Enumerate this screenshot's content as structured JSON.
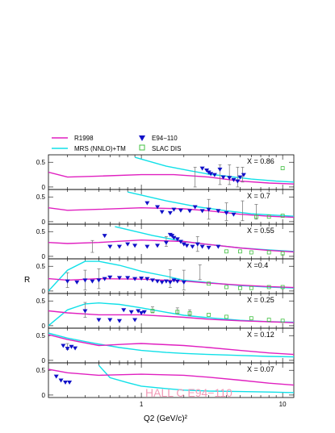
{
  "chart_data": {
    "type": "scatter",
    "xlabel": "Q2 (GeV/c)²",
    "ylabel": "R",
    "xscale": "log",
    "xlim": [
      0.22,
      12
    ],
    "ylim": [
      -0.05,
      0.65
    ],
    "x_ticks": [
      {
        "value": 1,
        "label": "1"
      },
      {
        "value": 10,
        "label": "10"
      }
    ],
    "y_ticks": [
      {
        "value": 0,
        "label": "0"
      },
      {
        "value": 0.5,
        "label": "0.5"
      }
    ],
    "legend": {
      "placement": "top",
      "items": [
        {
          "key": "r1998",
          "label": "R1998",
          "symbol": "line",
          "color": "#e020c0"
        },
        {
          "key": "mrs",
          "label": "MRS (NNLO)+TM",
          "symbol": "line",
          "color": "#10e0e8"
        },
        {
          "key": "e94",
          "label": "E94−110",
          "symbol": "triangle-down",
          "color": "#1010c8"
        },
        {
          "key": "slac",
          "label": "SLAC DIS",
          "symbol": "open-square",
          "color": "#40c040"
        }
      ]
    },
    "watermark": "HALL C  E94−110",
    "colors": {
      "r1998": "#e020c0",
      "mrs": "#10e0e8",
      "e94": "#1010c8",
      "slac": "#40c040",
      "errorbar": "#808080"
    },
    "panels": [
      {
        "label": "X = 0.86",
        "r1998": [
          [
            0.22,
            0.3
          ],
          [
            0.3,
            0.2
          ],
          [
            0.5,
            0.22
          ],
          [
            1,
            0.25
          ],
          [
            1.7,
            0.25
          ],
          [
            3,
            0.2
          ],
          [
            5,
            0.12
          ],
          [
            8,
            0.08
          ],
          [
            12,
            0.06
          ]
        ],
        "mrs": [
          [
            0.9,
            0.6
          ],
          [
            1.5,
            0.42
          ],
          [
            2.2,
            0.33
          ],
          [
            3,
            0.26
          ],
          [
            4,
            0.22
          ],
          [
            6,
            0.16
          ],
          [
            9,
            0.12
          ],
          [
            12,
            0.1
          ]
        ],
        "e94": [
          [
            2.7,
            0.38
          ],
          [
            2.9,
            0.34
          ],
          [
            3,
            0.3
          ],
          [
            3.1,
            0.27
          ],
          [
            3.3,
            0.25
          ],
          [
            3.6,
            0.36
          ],
          [
            3.8,
            0.2
          ],
          [
            4.2,
            0.19
          ],
          [
            4.5,
            0.15
          ],
          [
            4.8,
            0.12
          ],
          [
            5,
            0.2
          ],
          [
            5.3,
            0.25
          ]
        ],
        "errorbars": [
          [
            2.4,
            0.2,
            0.2
          ],
          [
            3.6,
            0.25,
            0.2
          ],
          [
            4.2,
            0.25,
            0.2
          ],
          [
            4.8,
            0.2,
            0.2
          ],
          [
            5.2,
            0.25,
            0.15
          ]
        ],
        "slac": [
          [
            10,
            0.38
          ]
        ]
      },
      {
        "label": "X = 0.7",
        "r1998": [
          [
            0.22,
            0.28
          ],
          [
            0.3,
            0.23
          ],
          [
            0.5,
            0.25
          ],
          [
            1,
            0.28
          ],
          [
            2,
            0.26
          ],
          [
            3,
            0.22
          ],
          [
            5,
            0.15
          ],
          [
            8,
            0.11
          ],
          [
            12,
            0.09
          ]
        ],
        "mrs": [
          [
            0.8,
            0.6
          ],
          [
            1.5,
            0.42
          ],
          [
            2.5,
            0.3
          ],
          [
            4,
            0.22
          ],
          [
            6,
            0.16
          ],
          [
            9,
            0.13
          ],
          [
            12,
            0.11
          ]
        ],
        "e94": [
          [
            1.1,
            0.38
          ],
          [
            1.3,
            0.3
          ],
          [
            1.4,
            0.2
          ],
          [
            1.6,
            0.18
          ],
          [
            1.7,
            0.25
          ],
          [
            1.9,
            0.23
          ],
          [
            2.2,
            0.22
          ],
          [
            2.4,
            0.3
          ],
          [
            2.7,
            0.22
          ],
          [
            3,
            0.25
          ],
          [
            3.5,
            0.22
          ],
          [
            4,
            0.18
          ],
          [
            4.5,
            0.15
          ]
        ],
        "errorbars": [
          [
            3,
            0.25,
            0.2
          ],
          [
            4,
            0.2,
            0.18
          ],
          [
            5.2,
            0.22,
            0.2
          ],
          [
            6.5,
            0.2,
            0.15
          ]
        ],
        "slac": [
          [
            6.5,
            0.1
          ],
          [
            8,
            0.1
          ],
          [
            10,
            0.12
          ]
        ]
      },
      {
        "label": "X = 0.55",
        "r1998": [
          [
            0.22,
            0.28
          ],
          [
            0.3,
            0.26
          ],
          [
            0.5,
            0.28
          ],
          [
            1,
            0.33
          ],
          [
            2,
            0.3
          ],
          [
            3,
            0.24
          ],
          [
            5,
            0.17
          ],
          [
            8,
            0.12
          ],
          [
            12,
            0.09
          ]
        ],
        "mrs": [
          [
            0.65,
            0.6
          ],
          [
            1.2,
            0.42
          ],
          [
            2,
            0.3
          ],
          [
            3,
            0.24
          ],
          [
            5,
            0.17
          ],
          [
            8,
            0.13
          ],
          [
            12,
            0.1
          ]
        ],
        "e94": [
          [
            0.55,
            0.42
          ],
          [
            0.6,
            0.2
          ],
          [
            0.7,
            0.2
          ],
          [
            0.8,
            0.25
          ],
          [
            0.9,
            0.22
          ],
          [
            1.1,
            0.2
          ],
          [
            1.3,
            0.22
          ],
          [
            1.5,
            0.28
          ],
          [
            1.6,
            0.44
          ],
          [
            1.65,
            0.42
          ],
          [
            1.7,
            0.38
          ],
          [
            1.8,
            0.35
          ],
          [
            1.9,
            0.3
          ],
          [
            2,
            0.25
          ],
          [
            2.1,
            0.22
          ],
          [
            2.3,
            0.2
          ],
          [
            2.5,
            0.25
          ],
          [
            2.7,
            0.2
          ],
          [
            3,
            0.18
          ],
          [
            3.5,
            0.2
          ]
        ],
        "errorbars": [
          [
            0.45,
            0.2,
            0.12
          ],
          [
            1.5,
            0.3,
            0.1
          ],
          [
            2.5,
            0.25,
            0.15
          ]
        ],
        "slac": [
          [
            4,
            0.1
          ],
          [
            5,
            0.1
          ],
          [
            6,
            0.08
          ],
          [
            8,
            0.08
          ],
          [
            10,
            0.06
          ]
        ]
      },
      {
        "label": "X =0.4",
        "r1998": [
          [
            0.22,
            0.25
          ],
          [
            0.3,
            0.22
          ],
          [
            0.5,
            0.25
          ],
          [
            1,
            0.24
          ],
          [
            2,
            0.2
          ],
          [
            3,
            0.16
          ],
          [
            5,
            0.12
          ],
          [
            8,
            0.09
          ],
          [
            12,
            0.07
          ]
        ],
        "mrs": [
          [
            0.22,
            0.0
          ],
          [
            0.3,
            0.42
          ],
          [
            0.4,
            0.6
          ],
          [
            0.5,
            0.6
          ],
          [
            0.7,
            0.52
          ],
          [
            1,
            0.4
          ],
          [
            1.5,
            0.3
          ],
          [
            2,
            0.22
          ],
          [
            3,
            0.17
          ],
          [
            5,
            0.11
          ],
          [
            8,
            0.08
          ],
          [
            12,
            0.06
          ]
        ],
        "e94": [
          [
            0.3,
            0.2
          ],
          [
            0.35,
            0.18
          ],
          [
            0.4,
            0.22
          ],
          [
            0.45,
            0.2
          ],
          [
            0.5,
            0.22
          ],
          [
            0.55,
            0.25
          ],
          [
            0.6,
            0.28
          ],
          [
            0.7,
            0.27
          ],
          [
            0.8,
            0.27
          ],
          [
            0.9,
            0.25
          ],
          [
            1,
            0.26
          ],
          [
            1.1,
            0.25
          ],
          [
            1.2,
            0.22
          ],
          [
            1.3,
            0.2
          ],
          [
            1.4,
            0.18
          ],
          [
            1.5,
            0.2
          ],
          [
            1.6,
            0.18
          ],
          [
            1.7,
            0.22
          ],
          [
            1.8,
            0.2
          ],
          [
            2,
            0.18
          ]
        ],
        "errorbars": [
          [
            0.3,
            0.22,
            0.15
          ],
          [
            0.4,
            0.22,
            0.2
          ],
          [
            0.5,
            0.25,
            0.2
          ],
          [
            1.6,
            0.25,
            0.18
          ],
          [
            2,
            0.22,
            0.2
          ],
          [
            2.6,
            0.38,
            0.15
          ]
        ],
        "slac": [
          [
            3,
            0.15
          ],
          [
            4,
            0.08
          ],
          [
            5,
            0.06
          ],
          [
            6,
            0.06
          ],
          [
            8,
            0.08
          ],
          [
            10,
            0.08
          ]
        ]
      },
      {
        "label": "X = 0.25",
        "r1998": [
          [
            0.22,
            0.3
          ],
          [
            0.3,
            0.26
          ],
          [
            0.5,
            0.22
          ],
          [
            0.8,
            0.22
          ],
          [
            1,
            0.22
          ],
          [
            2,
            0.17
          ],
          [
            3,
            0.13
          ],
          [
            5,
            0.1
          ],
          [
            8,
            0.08
          ],
          [
            12,
            0.06
          ]
        ],
        "mrs": [
          [
            0.22,
            0.0
          ],
          [
            0.3,
            0.32
          ],
          [
            0.4,
            0.44
          ],
          [
            0.5,
            0.46
          ],
          [
            0.7,
            0.43
          ],
          [
            1,
            0.36
          ],
          [
            1.5,
            0.27
          ],
          [
            2,
            0.21
          ],
          [
            3,
            0.16
          ],
          [
            5,
            0.11
          ],
          [
            8,
            0.08
          ],
          [
            12,
            0.07
          ]
        ],
        "e94": [
          [
            0.4,
            0.3
          ],
          [
            0.5,
            0.12
          ],
          [
            0.6,
            0.12
          ],
          [
            0.7,
            0.1
          ],
          [
            0.75,
            0.32
          ],
          [
            0.85,
            0.28
          ],
          [
            0.9,
            0.12
          ],
          [
            0.95,
            0.3
          ],
          [
            1,
            0.26
          ],
          [
            1.05,
            0.28
          ]
        ],
        "errorbars": [
          [
            0.4,
            0.32,
            0.15
          ],
          [
            1.2,
            0.32,
            0.06
          ],
          [
            1.8,
            0.3,
            0.06
          ],
          [
            2.2,
            0.26,
            0.06
          ]
        ],
        "slac": [
          [
            1.2,
            0.3
          ],
          [
            1.8,
            0.28
          ],
          [
            2.2,
            0.25
          ],
          [
            3,
            0.22
          ],
          [
            4,
            0.18
          ],
          [
            6,
            0.15
          ],
          [
            8,
            0.12
          ],
          [
            10,
            0.1
          ]
        ]
      },
      {
        "label": "X = 0.12",
        "r1998": [
          [
            0.22,
            0.52
          ],
          [
            0.3,
            0.42
          ],
          [
            0.5,
            0.3
          ],
          [
            0.8,
            0.33
          ],
          [
            1,
            0.34
          ],
          [
            2,
            0.3
          ],
          [
            3,
            0.26
          ],
          [
            5,
            0.2
          ],
          [
            8,
            0.15
          ],
          [
            12,
            0.12
          ]
        ],
        "mrs": [
          [
            0.22,
            0.55
          ],
          [
            0.3,
            0.45
          ],
          [
            0.4,
            0.38
          ],
          [
            0.5,
            0.33
          ],
          [
            0.7,
            0.26
          ],
          [
            1,
            0.2
          ],
          [
            1.5,
            0.16
          ],
          [
            2,
            0.14
          ],
          [
            3,
            0.12
          ],
          [
            5,
            0.1
          ],
          [
            8,
            0.08
          ],
          [
            12,
            0.07
          ]
        ],
        "e94": [
          [
            0.28,
            0.3
          ],
          [
            0.3,
            0.24
          ],
          [
            0.32,
            0.28
          ],
          [
            0.34,
            0.25
          ]
        ],
        "errorbars": [
          [
            0.3,
            0.28,
            0.06
          ]
        ],
        "slac": []
      },
      {
        "label": "X = 0.07",
        "r1998": [
          [
            0.22,
            0.52
          ],
          [
            0.3,
            0.45
          ],
          [
            0.5,
            0.4
          ],
          [
            1,
            0.42
          ],
          [
            2,
            0.4
          ],
          [
            3,
            0.36
          ],
          [
            5,
            0.3
          ],
          [
            8,
            0.24
          ],
          [
            12,
            0.2
          ]
        ],
        "mrs": [
          [
            0.5,
            0.6
          ],
          [
            0.6,
            0.35
          ],
          [
            0.8,
            0.25
          ],
          [
            1,
            0.18
          ],
          [
            1.5,
            0.13
          ],
          [
            2,
            0.1
          ],
          [
            3,
            0.08
          ],
          [
            5,
            0.07
          ],
          [
            8,
            0.06
          ],
          [
            12,
            0.05
          ]
        ],
        "e94": [
          [
            0.25,
            0.38
          ],
          [
            0.27,
            0.3
          ],
          [
            0.29,
            0.26
          ],
          [
            0.31,
            0.26
          ]
        ],
        "errorbars": [],
        "slac": []
      }
    ]
  }
}
